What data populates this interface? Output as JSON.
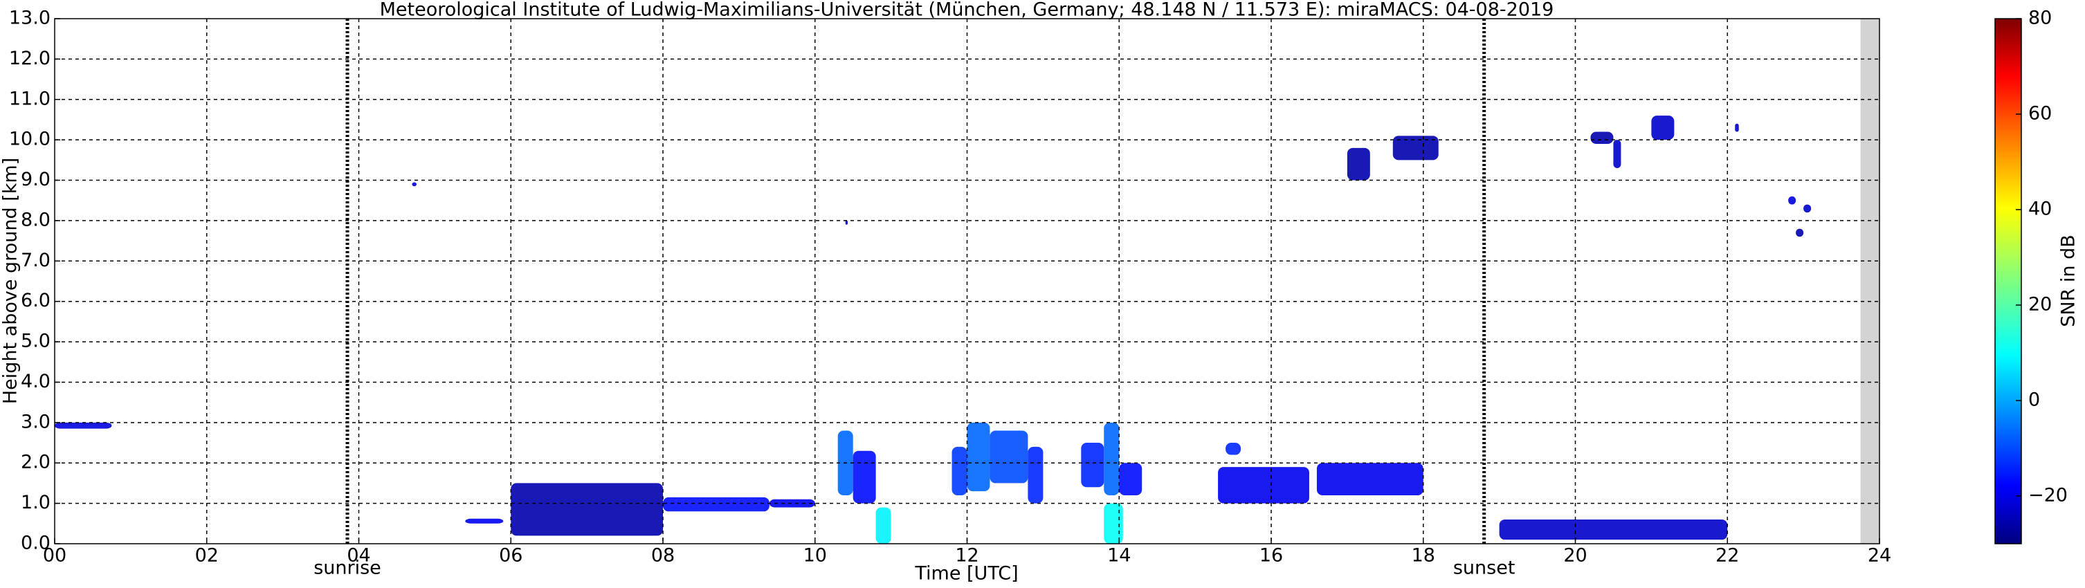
{
  "chart_data": {
    "type": "time-height",
    "title": "Meteorological Institute of Ludwig-Maximilians-Universität (München, Germany; 48.148 N / 11.573 E):    miraMACS: 04-08-2019",
    "x_label": "Time [UTC]",
    "y_label": "Height above ground [km]",
    "colorbar_label": "SNR in dB",
    "xlim": [
      0,
      24
    ],
    "xticks": [
      {
        "value": 0,
        "label": "00"
      },
      {
        "value": 2,
        "label": "02"
      },
      {
        "value": 4,
        "label": "04"
      },
      {
        "value": 6,
        "label": "06"
      },
      {
        "value": 8,
        "label": "08"
      },
      10,
      12,
      14,
      16,
      18,
      20,
      22,
      24
    ],
    "ylim": [
      0,
      13
    ],
    "yticks": [
      {
        "value": 0,
        "label": "0.0"
      },
      {
        "value": 1,
        "label": "1.0"
      },
      {
        "value": 2,
        "label": "2.0"
      },
      {
        "value": 3,
        "label": "3.0"
      },
      {
        "value": 4,
        "label": "4.0"
      },
      {
        "value": 5,
        "label": "5.0"
      },
      {
        "value": 6,
        "label": "6.0"
      },
      {
        "value": 7,
        "label": "7.0"
      },
      {
        "value": 8,
        "label": "8.0"
      },
      {
        "value": 9,
        "label": "9.0"
      },
      {
        "value": 10,
        "label": "10.0"
      },
      {
        "value": 11,
        "label": "11.0"
      },
      {
        "value": 12,
        "label": "12.0"
      },
      {
        "value": 13,
        "label": "13.0"
      }
    ],
    "clim": [
      -30,
      80
    ],
    "cticks": [
      {
        "value": -20,
        "label": "−20"
      },
      0,
      20,
      40,
      60,
      80
    ],
    "grid": true,
    "no_data": [
      23.75,
      24
    ],
    "events": [
      {
        "label": "sunrise",
        "x": 3.85
      },
      {
        "label": "sunset",
        "x": 18.8
      }
    ],
    "echoes": [
      {
        "t0": 0.0,
        "t1": 0.75,
        "h0": 2.85,
        "h1": 3.0,
        "snr": -20
      },
      {
        "t0": 4.7,
        "t1": 4.76,
        "h0": 8.85,
        "h1": 8.95,
        "snr": -20
      },
      {
        "t0": 5.4,
        "t1": 5.9,
        "h0": 0.5,
        "h1": 0.62,
        "snr": -18
      },
      {
        "t0": 6.0,
        "t1": 8.0,
        "h0": 0.2,
        "h1": 1.5,
        "snr": -25
      },
      {
        "t0": 8.0,
        "t1": 9.4,
        "h0": 0.8,
        "h1": 1.15,
        "snr": -15
      },
      {
        "t0": 9.4,
        "t1": 10.0,
        "h0": 0.9,
        "h1": 1.1,
        "snr": -18
      },
      {
        "t0": 10.4,
        "t1": 10.43,
        "h0": 7.9,
        "h1": 8.0,
        "snr": -22
      },
      {
        "t0": 10.3,
        "t1": 10.5,
        "h0": 1.2,
        "h1": 2.8,
        "snr": -5
      },
      {
        "t0": 10.5,
        "t1": 10.8,
        "h0": 1.0,
        "h1": 2.3,
        "snr": -15
      },
      {
        "t0": 10.8,
        "t1": 11.0,
        "h0": 0.0,
        "h1": 0.9,
        "snr": 10
      },
      {
        "t0": 11.8,
        "t1": 12.0,
        "h0": 1.2,
        "h1": 2.4,
        "snr": -10
      },
      {
        "t0": 12.0,
        "t1": 12.3,
        "h0": 1.3,
        "h1": 3.0,
        "snr": -5
      },
      {
        "t0": 12.3,
        "t1": 12.8,
        "h0": 1.5,
        "h1": 2.8,
        "snr": -8
      },
      {
        "t0": 12.8,
        "t1": 13.0,
        "h0": 1.0,
        "h1": 2.4,
        "snr": -12
      },
      {
        "t0": 13.5,
        "t1": 13.8,
        "h0": 1.4,
        "h1": 2.5,
        "snr": -12
      },
      {
        "t0": 13.8,
        "t1": 14.0,
        "h0": 1.2,
        "h1": 3.0,
        "snr": -5
      },
      {
        "t0": 13.8,
        "t1": 14.05,
        "h0": 0.0,
        "h1": 1.0,
        "snr": 12
      },
      {
        "t0": 14.0,
        "t1": 14.3,
        "h0": 1.2,
        "h1": 2.0,
        "snr": -15
      },
      {
        "t0": 15.4,
        "t1": 15.6,
        "h0": 2.2,
        "h1": 2.5,
        "snr": -12
      },
      {
        "t0": 15.3,
        "t1": 16.5,
        "h0": 1.0,
        "h1": 1.9,
        "snr": -18
      },
      {
        "t0": 16.6,
        "t1": 18.0,
        "h0": 1.2,
        "h1": 2.0,
        "snr": -18
      },
      {
        "t0": 17.0,
        "t1": 17.3,
        "h0": 9.0,
        "h1": 9.8,
        "snr": -25
      },
      {
        "t0": 17.6,
        "t1": 18.2,
        "h0": 9.5,
        "h1": 10.1,
        "snr": -25
      },
      {
        "t0": 19.0,
        "t1": 22.0,
        "h0": 0.1,
        "h1": 0.6,
        "snr": -22
      },
      {
        "t0": 20.2,
        "t1": 20.5,
        "h0": 9.9,
        "h1": 10.2,
        "snr": -25
      },
      {
        "t0": 20.5,
        "t1": 20.6,
        "h0": 9.3,
        "h1": 10.0,
        "snr": -22
      },
      {
        "t0": 21.0,
        "t1": 21.3,
        "h0": 10.0,
        "h1": 10.6,
        "snr": -22
      },
      {
        "t0": 22.1,
        "t1": 22.15,
        "h0": 10.2,
        "h1": 10.4,
        "snr": -22
      },
      {
        "t0": 22.8,
        "t1": 22.9,
        "h0": 8.4,
        "h1": 8.6,
        "snr": -20
      },
      {
        "t0": 23.0,
        "t1": 23.1,
        "h0": 8.2,
        "h1": 8.4,
        "snr": -22
      },
      {
        "t0": 22.9,
        "t1": 23.0,
        "h0": 7.6,
        "h1": 7.8,
        "snr": -25
      }
    ]
  }
}
